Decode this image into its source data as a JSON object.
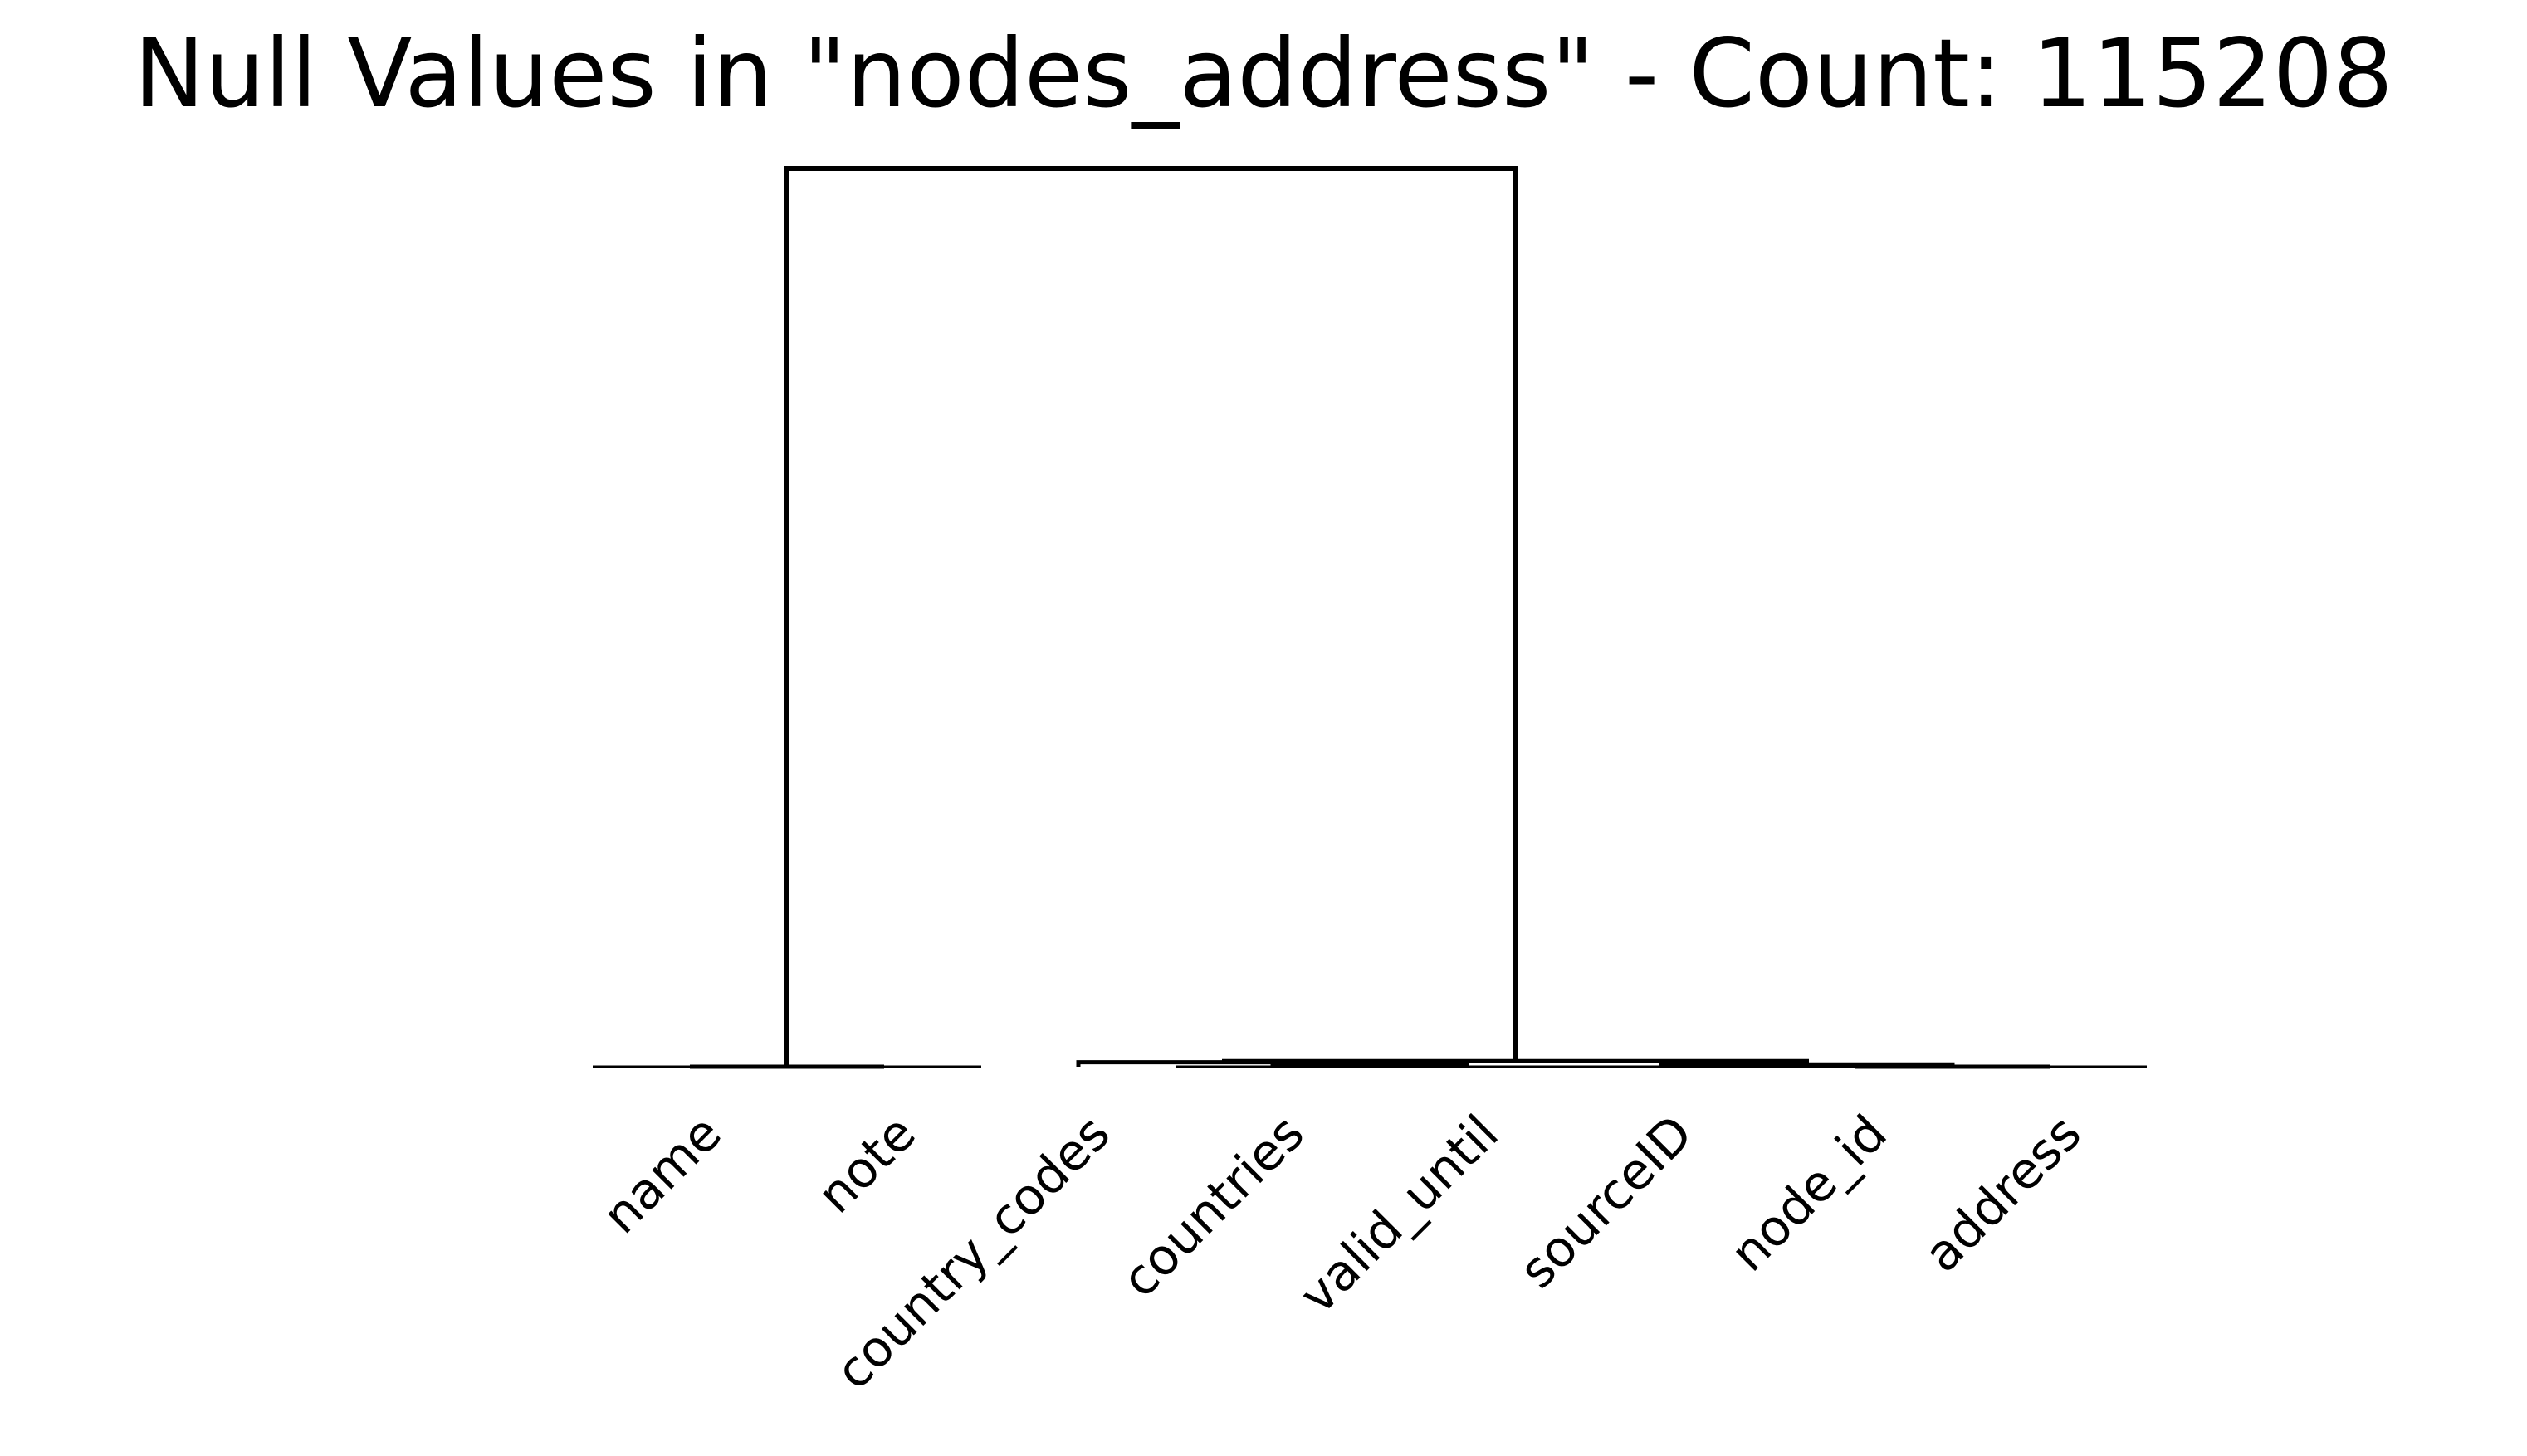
{
  "chart_data": {
    "type": "dendrogram",
    "title": "Null Values in \"nodes_address\" - Count: 115208",
    "xlabel": "",
    "ylabel": "",
    "grid": false,
    "leaves": [
      "name",
      "note",
      "country_codes",
      "countries",
      "valid_until",
      "sourceID",
      "node_id",
      "address"
    ],
    "links": [
      {
        "left": "node_id",
        "right": "address",
        "height": 0.0
      },
      {
        "left": "countries",
        "right": "valid_until",
        "height": 0.01
      },
      {
        "left": "sourceID",
        "right": "node_id+address",
        "height": 0.01
      },
      {
        "left": "country_codes",
        "right": "countries+valid_until",
        "height": 0.02
      },
      {
        "left": "country_codes+countries+valid_until",
        "right": "sourceID+node_id+address",
        "height": 0.025
      },
      {
        "left": "name",
        "right": "note",
        "height": 0.0
      },
      {
        "left": "name+note",
        "right": "country_codes+countries+valid_until+sourceID+node_id+address",
        "height": 4.0
      }
    ],
    "ylim": [
      0,
      4.0
    ],
    "colors": {
      "line": "#000000"
    }
  }
}
